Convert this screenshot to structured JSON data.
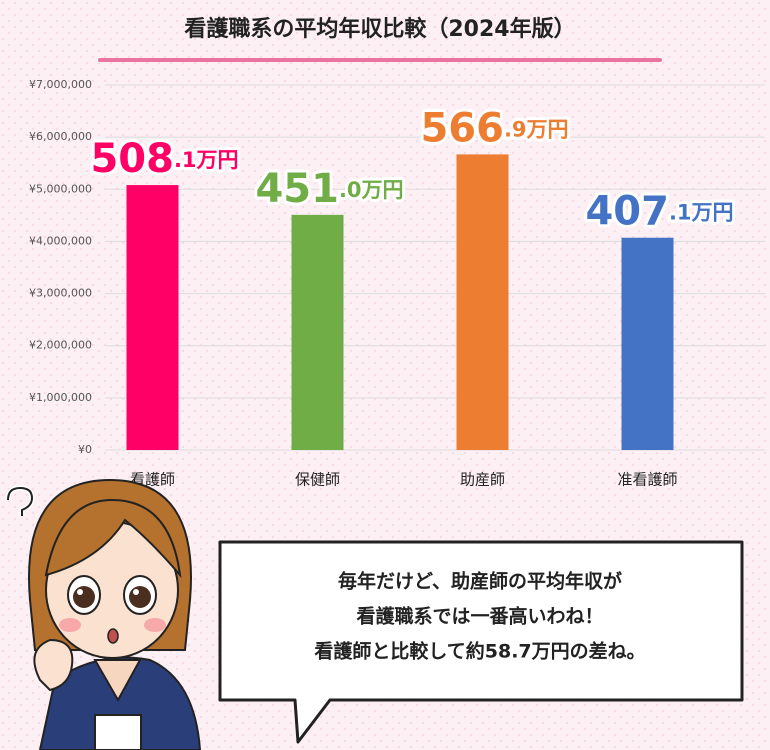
{
  "chart_data": {
    "type": "bar",
    "title": "看護職系の平均年収比較（2024年版）",
    "categories": [
      "看護師",
      "保健師",
      "助産師",
      "准看護師"
    ],
    "values": [
      5081000,
      4510000,
      5669000,
      4071000
    ],
    "value_labels": [
      "508.1万円",
      "451.0万円",
      "566.9万円",
      "407.1万円"
    ],
    "colors": [
      "#ff0066",
      "#70ad47",
      "#ed7d31",
      "#4472c4"
    ],
    "ylim": [
      0,
      7000000
    ],
    "yticks": [
      {
        "value": 0,
        "label": "¥0"
      },
      {
        "value": 1000000,
        "label": "¥1,000,000"
      },
      {
        "value": 2000000,
        "label": "¥2,000,000"
      },
      {
        "value": 3000000,
        "label": "¥3,000,000"
      },
      {
        "value": 4000000,
        "label": "¥4,000,000"
      },
      {
        "value": 5000000,
        "label": "¥5,000,000"
      },
      {
        "value": 6000000,
        "label": "¥6,000,000"
      },
      {
        "value": 7000000,
        "label": "¥7,000,000"
      }
    ],
    "grid": true
  },
  "speech_bubble": {
    "lines": [
      "毎年だけど、助産師の平均年収が",
      "看護職系では一番高いわね！",
      "看護師と比較して約58.7万円の差ね。"
    ]
  }
}
